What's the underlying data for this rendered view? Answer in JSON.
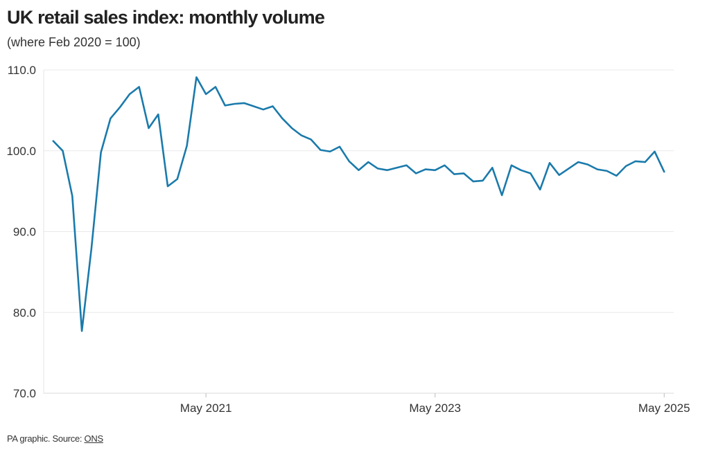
{
  "chart_data": {
    "type": "line",
    "title": "UK retail sales index: monthly volume",
    "subtitle": "(where Feb 2020 = 100)",
    "xlabel": "",
    "ylabel": "",
    "ylim": [
      70,
      110
    ],
    "yticks": [
      110,
      100,
      90,
      80,
      70
    ],
    "ytick_labels": [
      "110.0",
      "100.0",
      "90.0",
      "80.0",
      "70.0"
    ],
    "xticks": [
      "2021-05",
      "2023-05",
      "2025-05"
    ],
    "xtick_labels": [
      "May 2021",
      "May 2023",
      "May 2025"
    ],
    "grid": "horizontal",
    "line_color": "#1a7aab",
    "series": [
      {
        "x": [
          "2020-01",
          "2020-02",
          "2020-03",
          "2020-04",
          "2020-05",
          "2020-06",
          "2020-07",
          "2020-08",
          "2020-09",
          "2020-10",
          "2020-11",
          "2020-12",
          "2021-01",
          "2021-02",
          "2021-03",
          "2021-04",
          "2021-05",
          "2021-06",
          "2021-07",
          "2021-08",
          "2021-09",
          "2021-10",
          "2021-11",
          "2021-12",
          "2022-01",
          "2022-02",
          "2022-03",
          "2022-04",
          "2022-05",
          "2022-06",
          "2022-07",
          "2022-08",
          "2022-09",
          "2022-10",
          "2022-11",
          "2022-12",
          "2023-01",
          "2023-02",
          "2023-03",
          "2023-04",
          "2023-05",
          "2023-06",
          "2023-07",
          "2023-08",
          "2023-09",
          "2023-10",
          "2023-11",
          "2023-12",
          "2024-01",
          "2024-02",
          "2024-03",
          "2024-04",
          "2024-05",
          "2024-06",
          "2024-07",
          "2024-08",
          "2024-09",
          "2024-10",
          "2024-11",
          "2024-12",
          "2025-01",
          "2025-02",
          "2025-03",
          "2025-04",
          "2025-05"
        ],
        "values": [
          101.2,
          100.0,
          94.4,
          77.7,
          87.9,
          99.8,
          104.0,
          105.4,
          107.0,
          107.9,
          102.8,
          104.5,
          95.6,
          96.5,
          100.6,
          109.1,
          107.0,
          107.9,
          105.6,
          105.8,
          105.9,
          105.5,
          105.1,
          105.5,
          104.0,
          102.8,
          101.9,
          101.4,
          100.1,
          99.9,
          100.5,
          98.7,
          97.6,
          98.6,
          97.8,
          97.6,
          97.9,
          98.2,
          97.2,
          97.7,
          97.6,
          98.2,
          97.1,
          97.2,
          96.2,
          96.3,
          97.9,
          94.5,
          98.2,
          97.6,
          97.2,
          95.2,
          98.5,
          97.0,
          97.8,
          98.6,
          98.3,
          97.7,
          97.5,
          96.9,
          98.1,
          98.7,
          98.6,
          99.9,
          97.4
        ]
      }
    ]
  },
  "footer": {
    "prefix": "PA graphic. Source: ",
    "source": "ONS"
  }
}
